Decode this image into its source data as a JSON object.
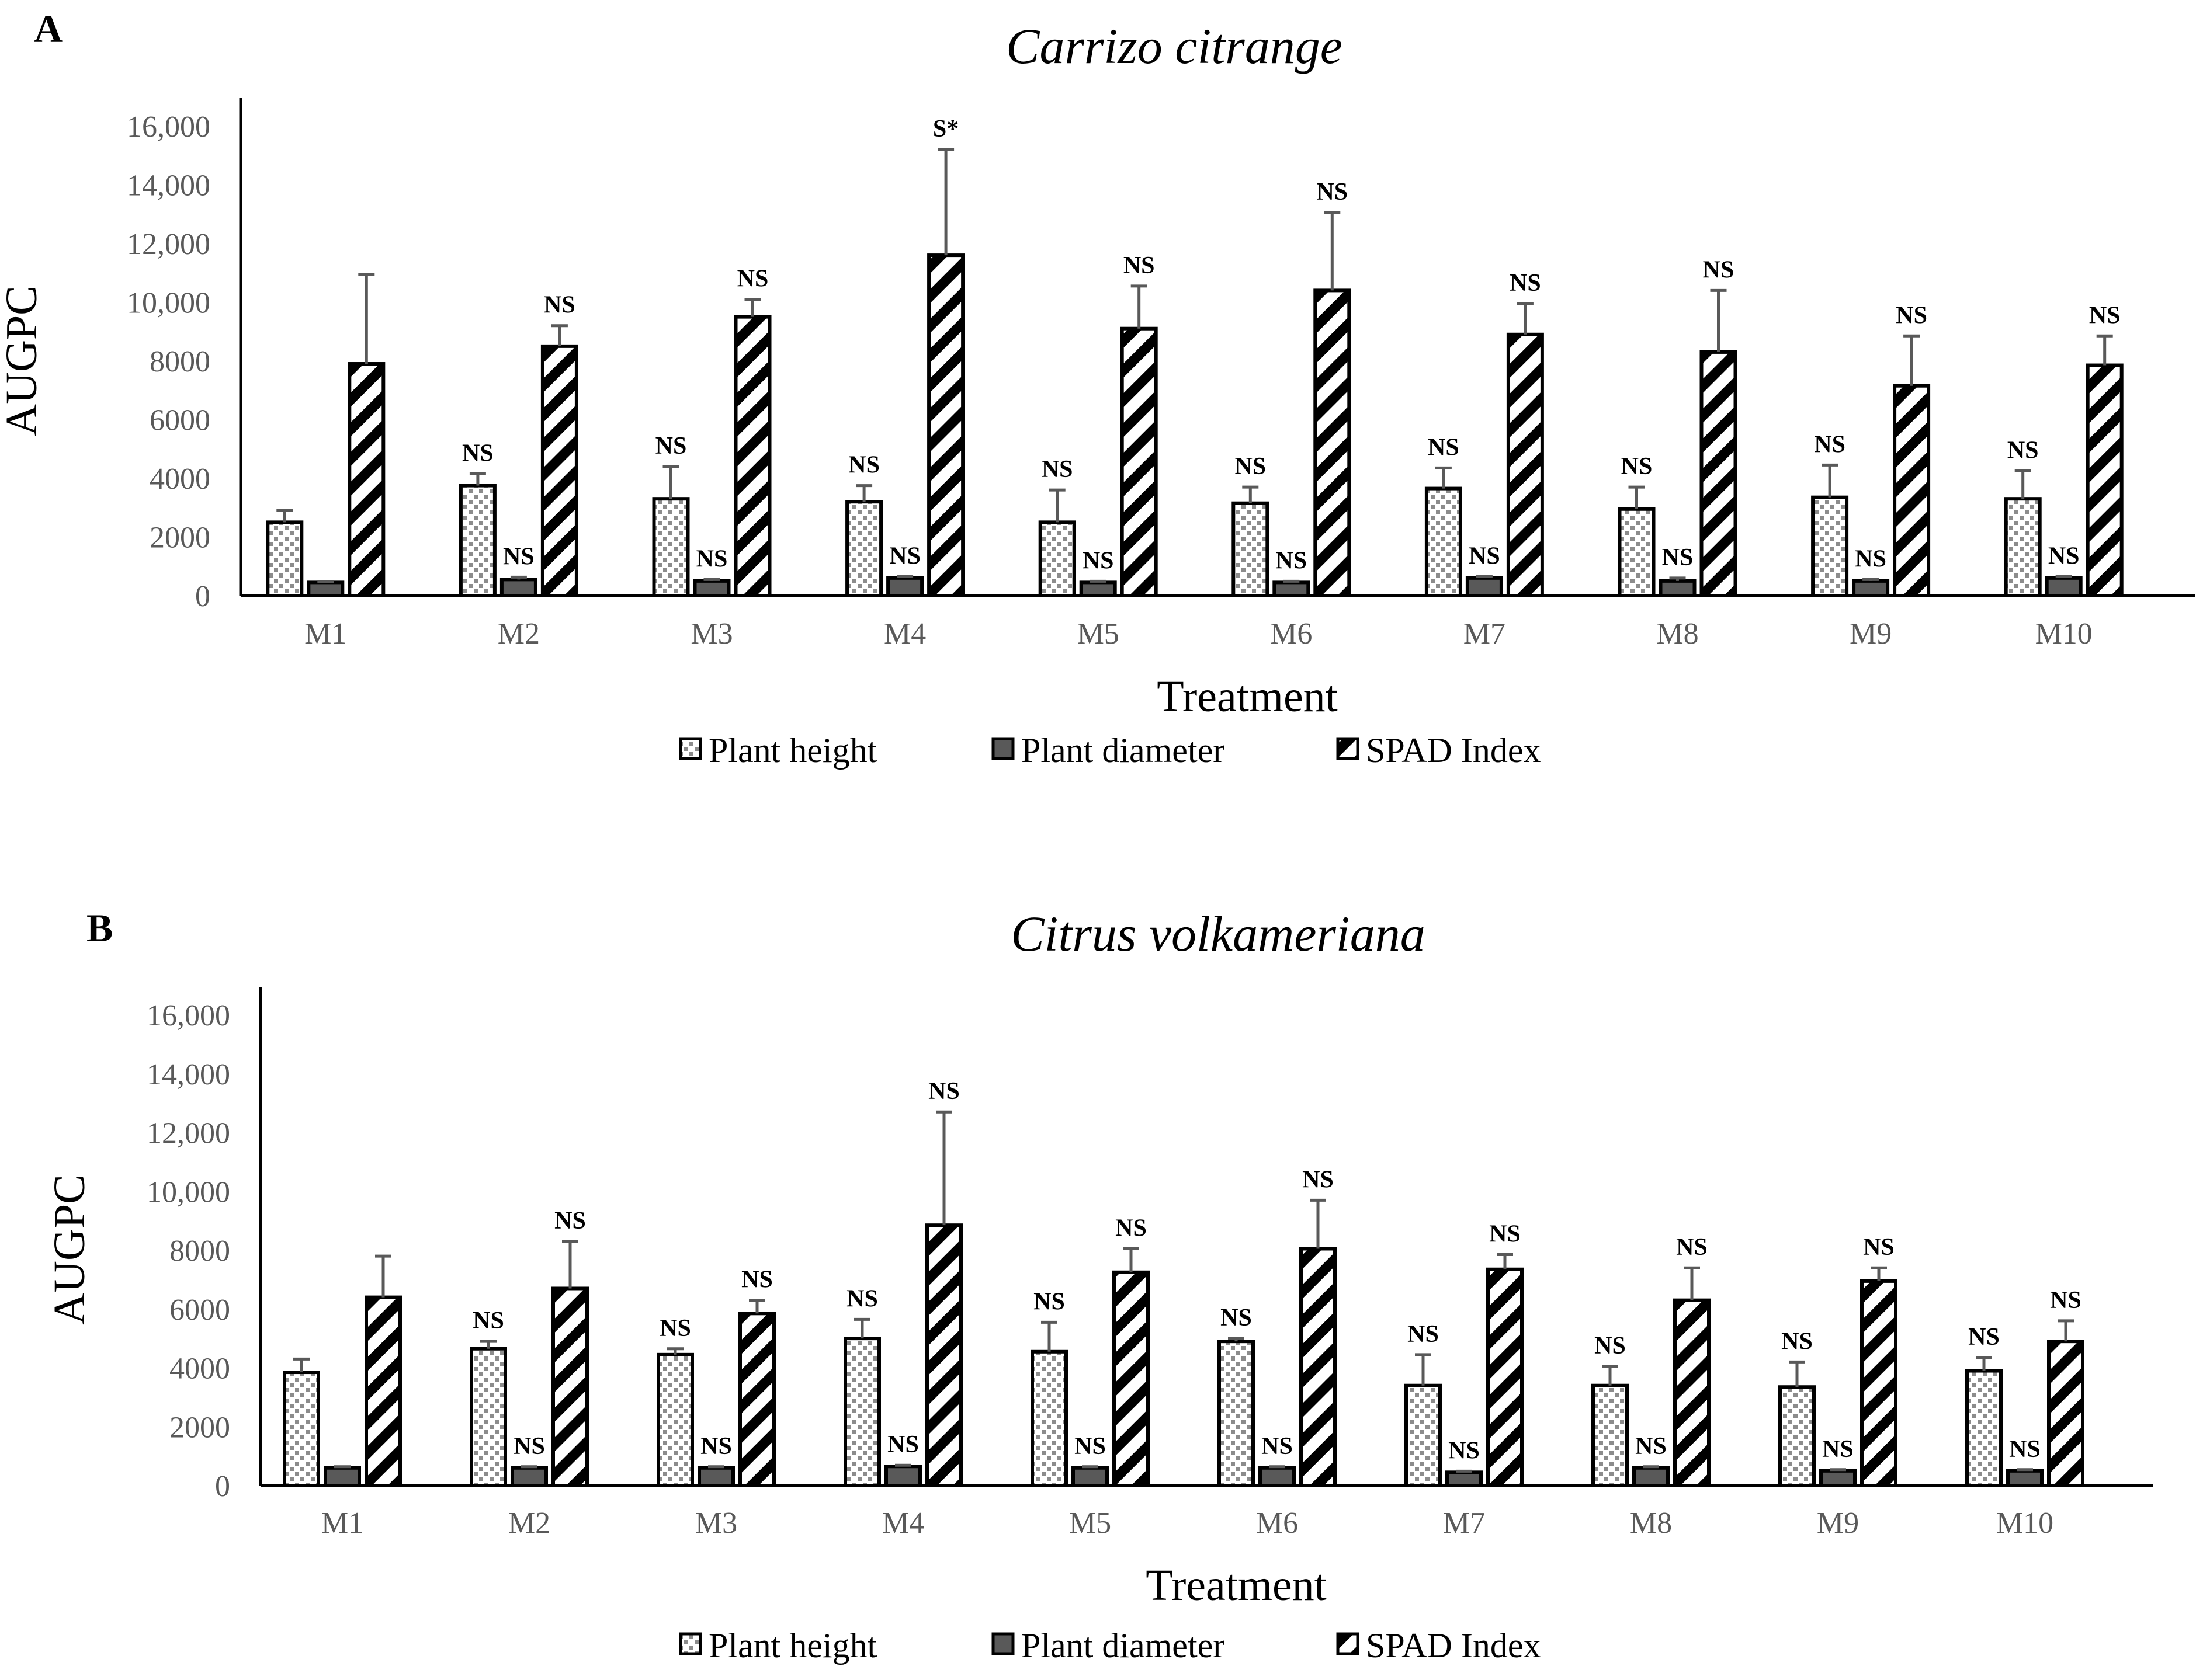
{
  "chart_data": [
    {
      "panel": "A",
      "type": "bar",
      "title": "Carrizo citrange",
      "xlabel": "Treatment",
      "ylabel": "AUGPC",
      "ylim": [
        0,
        16000
      ],
      "yticks": [
        "0",
        "2000",
        "4000",
        "6000",
        "8000",
        "10,000",
        "12,000",
        "14,000",
        "16,000"
      ],
      "categories": [
        "M1",
        "M2",
        "M3",
        "M4",
        "M5",
        "M6",
        "M7",
        "M8",
        "M9",
        "M10"
      ],
      "series": [
        {
          "name": "Plant height",
          "pattern": "dots",
          "values": [
            2500,
            3750,
            3300,
            3200,
            2500,
            3150,
            3650,
            2950,
            3350,
            3300
          ],
          "errors": [
            400,
            400,
            1100,
            550,
            1100,
            550,
            700,
            750,
            1100,
            950
          ],
          "labels": [
            "",
            "NS",
            "NS",
            "NS",
            "NS",
            "NS",
            "NS",
            "NS",
            "NS",
            "NS"
          ]
        },
        {
          "name": "Plant diameter",
          "pattern": "solid",
          "values": [
            450,
            550,
            500,
            600,
            450,
            450,
            600,
            500,
            500,
            600
          ],
          "errors": [
            30,
            80,
            50,
            50,
            40,
            40,
            50,
            100,
            50,
            50
          ],
          "labels": [
            "",
            "NS",
            "NS",
            "NS",
            "NS",
            "NS",
            "NS",
            "NS",
            "NS",
            "NS"
          ]
        },
        {
          "name": "SPAD Index",
          "pattern": "stripes",
          "values": [
            7900,
            8500,
            9500,
            11600,
            9100,
            10400,
            8900,
            8300,
            7150,
            7850
          ],
          "errors": [
            3050,
            700,
            600,
            3600,
            1450,
            2650,
            1050,
            2100,
            1700,
            1000
          ],
          "labels": [
            "",
            "NS",
            "NS",
            "S*",
            "NS",
            "NS",
            "NS",
            "NS",
            "NS",
            "NS"
          ]
        }
      ],
      "legend": [
        "Plant height",
        "Plant diameter",
        "SPAD Index"
      ]
    },
    {
      "panel": "B",
      "type": "bar",
      "title": "Citrus volkameriana",
      "xlabel": "Treatment",
      "ylabel": "AUGPC",
      "ylim": [
        0,
        16000
      ],
      "yticks": [
        "0",
        "2000",
        "4000",
        "6000",
        "8000",
        "10,000",
        "12,000",
        "14,000",
        "16,000"
      ],
      "categories": [
        "M1",
        "M2",
        "M3",
        "M4",
        "M5",
        "M6",
        "M7",
        "M8",
        "M9",
        "M10"
      ],
      "series": [
        {
          "name": "Plant height",
          "pattern": "dots",
          "values": [
            3850,
            4650,
            4450,
            5000,
            4550,
            4900,
            3400,
            3400,
            3350,
            3900
          ],
          "errors": [
            450,
            250,
            200,
            650,
            1000,
            100,
            1050,
            650,
            850,
            450
          ],
          "labels": [
            "",
            "NS",
            "NS",
            "NS",
            "NS",
            "NS",
            "NS",
            "NS",
            "NS",
            "NS"
          ]
        },
        {
          "name": "Plant diameter",
          "pattern": "solid",
          "values": [
            600,
            600,
            600,
            650,
            600,
            600,
            450,
            600,
            500,
            500
          ],
          "errors": [
            40,
            40,
            40,
            40,
            40,
            40,
            40,
            40,
            40,
            40
          ],
          "labels": [
            "",
            "NS",
            "NS",
            "NS",
            "NS",
            "NS",
            "NS",
            "NS",
            "NS",
            "NS"
          ]
        },
        {
          "name": "SPAD Index",
          "pattern": "stripes",
          "values": [
            6400,
            6700,
            5850,
            8850,
            7250,
            8050,
            7350,
            6300,
            6950,
            4900
          ],
          "errors": [
            1400,
            1600,
            450,
            3850,
            800,
            1650,
            500,
            1100,
            450,
            700
          ],
          "labels": [
            "",
            "NS",
            "NS",
            "NS",
            "NS",
            "NS",
            "NS",
            "NS",
            "NS",
            "NS"
          ]
        }
      ],
      "legend": [
        "Plant height",
        "Plant diameter",
        "SPAD Index"
      ]
    }
  ]
}
